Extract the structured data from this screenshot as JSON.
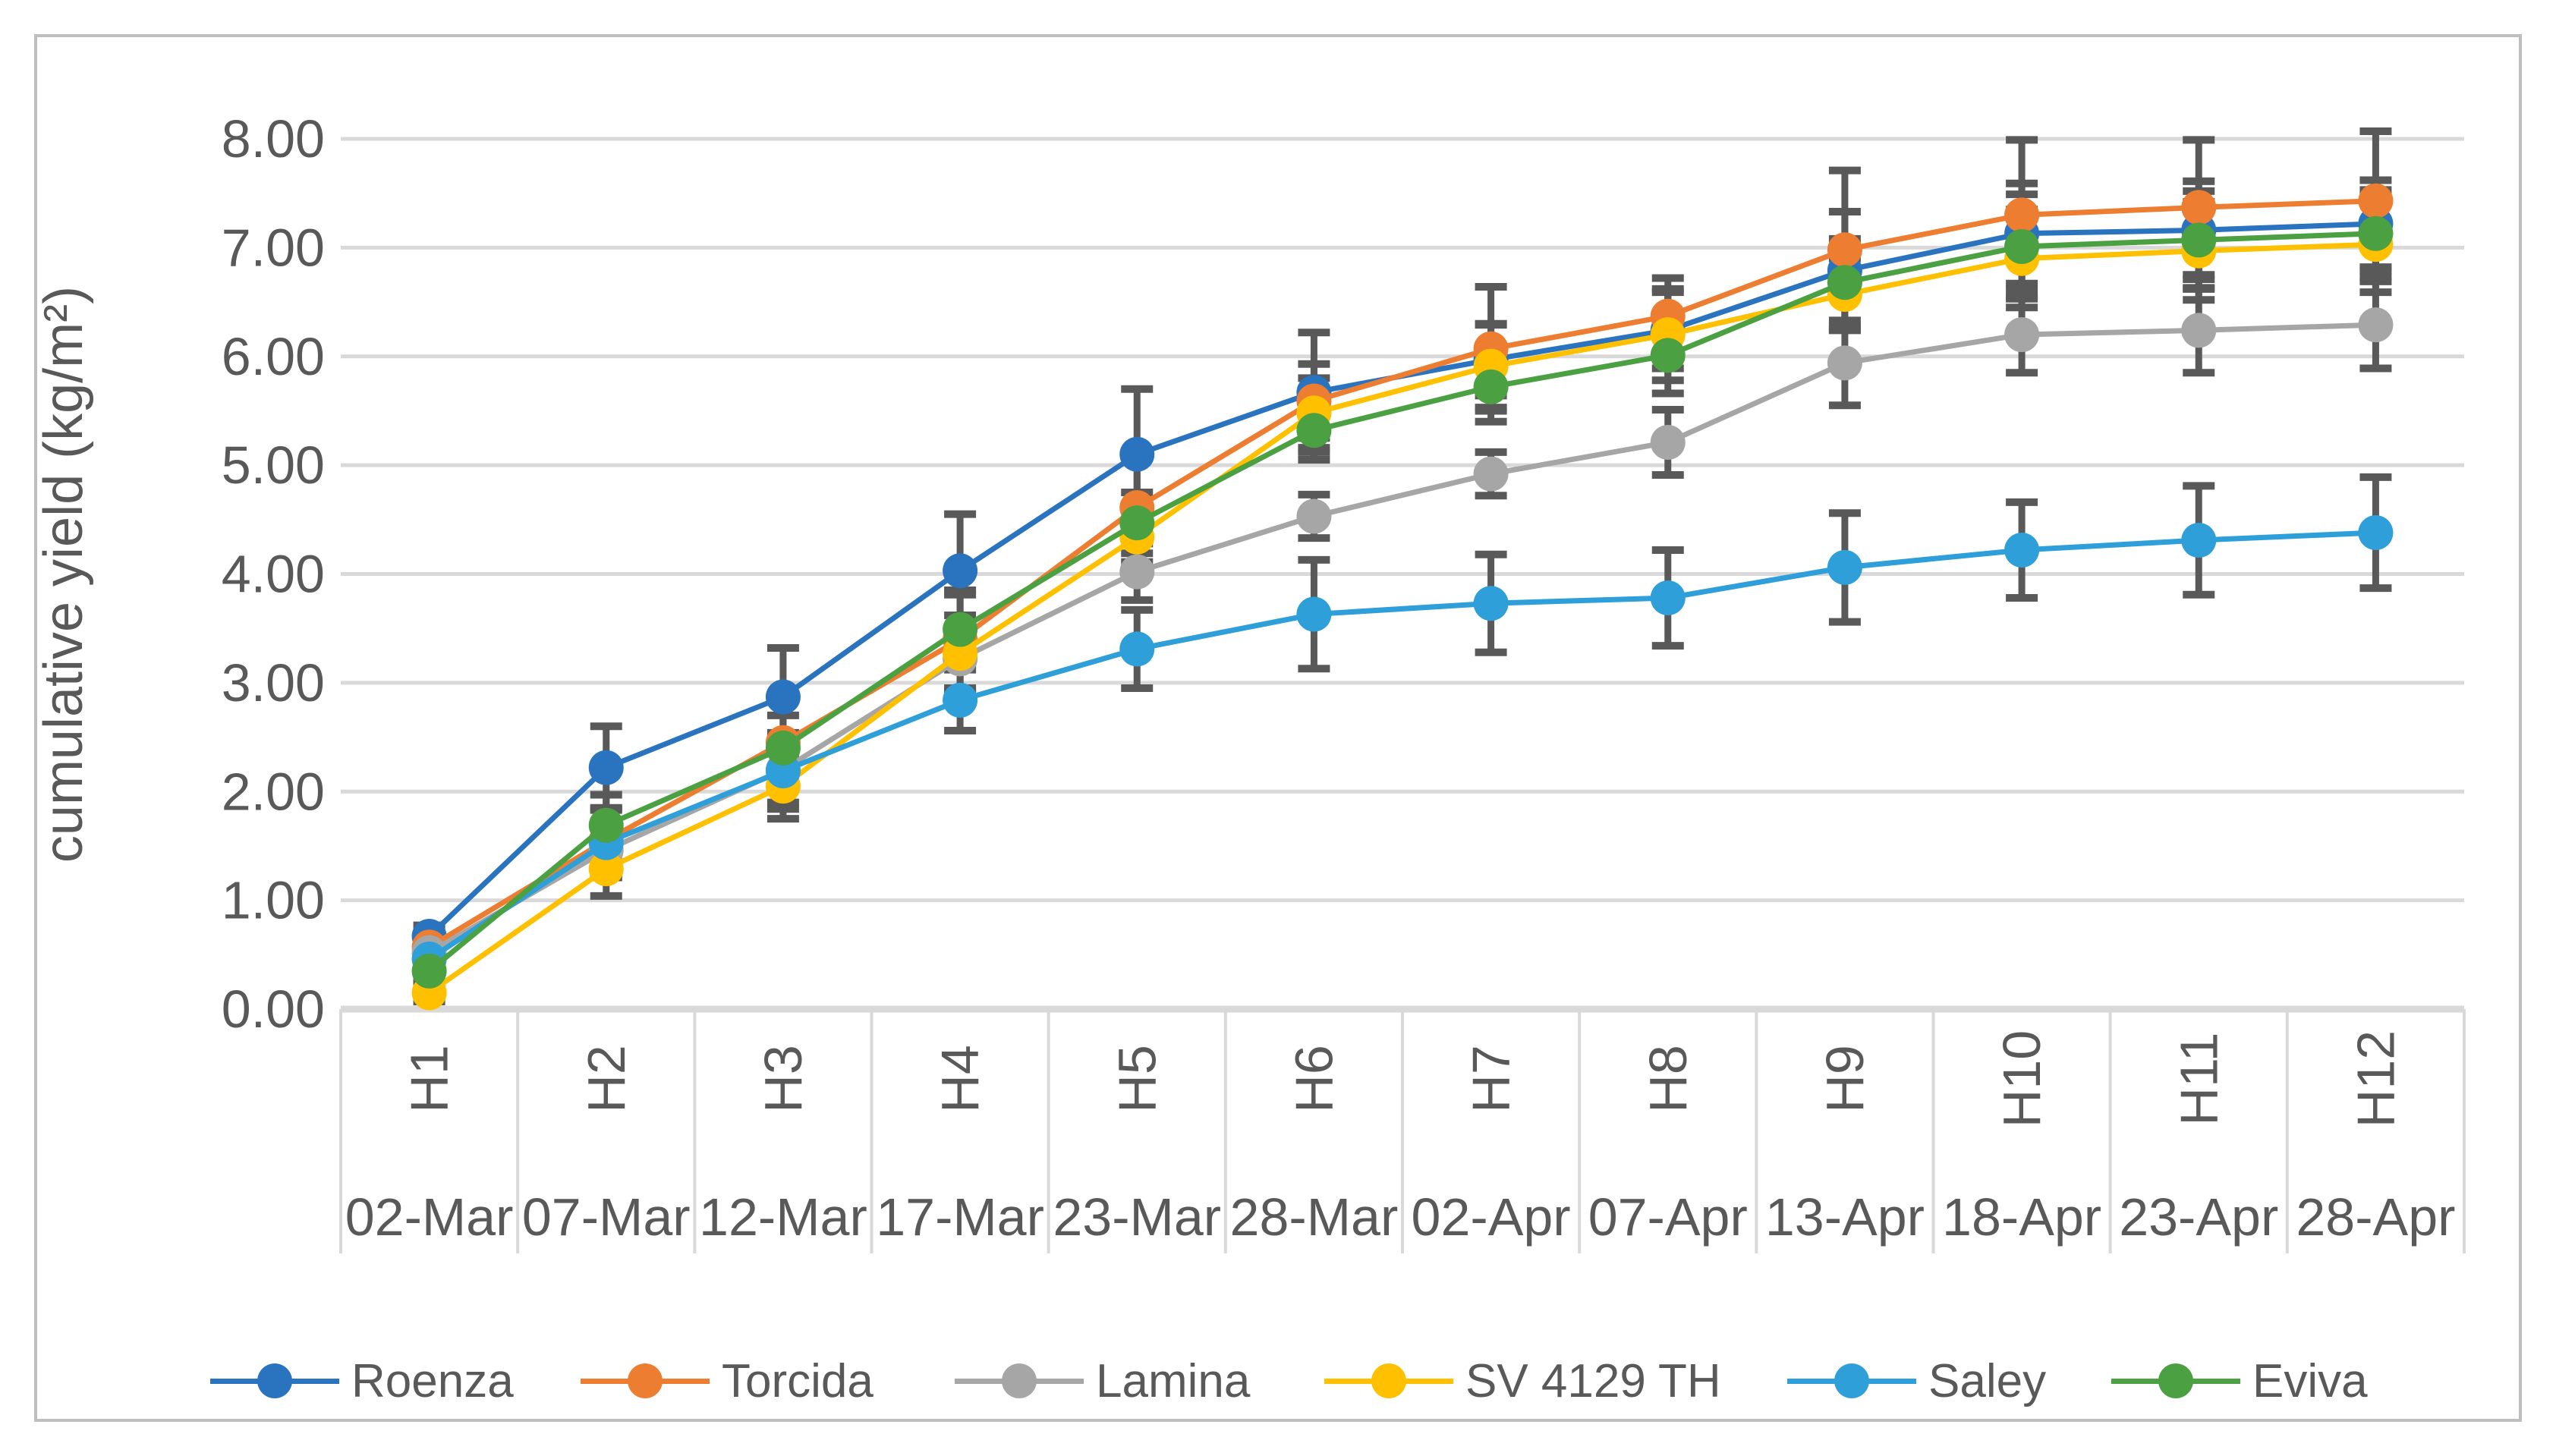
{
  "figure": {
    "background": "#FFFFFF",
    "border_color": "#BFBFBF"
  },
  "chart_data": {
    "type": "line",
    "title": "",
    "ylabel": "cumulative yield (kg/m²)",
    "xlabel": "",
    "grid": "horizontal",
    "error_bars": true,
    "legend_position": "bottom",
    "text_color": "#595959",
    "grid_color": "#D9D9D9",
    "error_bar_color": "#595959",
    "y_axis": {
      "min": 0,
      "max": 8,
      "step": 1,
      "tick_labels": [
        "0.00",
        "1.00",
        "2.00",
        "3.00",
        "4.00",
        "5.00",
        "6.00",
        "7.00",
        "8.00"
      ]
    },
    "x_levels": [
      {
        "harvest": "H1",
        "date": "02-Mar"
      },
      {
        "harvest": "H2",
        "date": "07-Mar"
      },
      {
        "harvest": "H3",
        "date": "12-Mar"
      },
      {
        "harvest": "H4",
        "date": "17-Mar"
      },
      {
        "harvest": "H5",
        "date": "23-Mar"
      },
      {
        "harvest": "H6",
        "date": "28-Mar"
      },
      {
        "harvest": "H7",
        "date": "02-Apr"
      },
      {
        "harvest": "H8",
        "date": "07-Apr"
      },
      {
        "harvest": "H9",
        "date": "13-Apr"
      },
      {
        "harvest": "H10",
        "date": "18-Apr"
      },
      {
        "harvest": "H11",
        "date": "23-Apr"
      },
      {
        "harvest": "H12",
        "date": "28-Apr"
      }
    ],
    "series": [
      {
        "name": "Roenza",
        "color": "#2A73BF",
        "values": [
          0.67,
          2.22,
          2.87,
          4.03,
          5.1,
          5.67,
          5.97,
          6.24,
          6.79,
          7.13,
          7.16,
          7.22
        ],
        "errors": [
          0.1,
          0.38,
          0.45,
          0.52,
          0.6,
          0.55,
          0.33,
          0.35,
          0.54,
          0.46,
          0.45,
          0.4
        ]
      },
      {
        "name": "Torcida",
        "color": "#ED7D31",
        "values": [
          0.57,
          1.55,
          2.45,
          3.4,
          4.61,
          5.59,
          6.07,
          6.37,
          6.98,
          7.3,
          7.37,
          7.43
        ],
        "errors": [
          0.1,
          0.3,
          0.4,
          0.45,
          0.5,
          0.34,
          0.57,
          0.35,
          0.73,
          0.69,
          0.62,
          0.64
        ]
      },
      {
        "name": "Lamina",
        "color": "#A6A6A6",
        "values": [
          0.52,
          1.46,
          2.2,
          3.22,
          4.02,
          4.53,
          4.92,
          5.21,
          5.94,
          6.2,
          6.24,
          6.29
        ],
        "errors": [
          0.08,
          0.25,
          0.3,
          0.3,
          0.26,
          0.2,
          0.2,
          0.3,
          0.39,
          0.35,
          0.39,
          0.4
        ]
      },
      {
        "name": "SV 4129 TH",
        "color": "#FFC000",
        "values": [
          0.15,
          1.29,
          2.05,
          3.27,
          4.34,
          5.48,
          5.91,
          6.2,
          6.57,
          6.9,
          6.97,
          7.03
        ],
        "errors": [
          0.08,
          0.25,
          0.3,
          0.35,
          0.3,
          0.32,
          0.38,
          0.42,
          0.33,
          0.45,
          0.45,
          0.44
        ]
      },
      {
        "name": "Saley",
        "color": "#2E9FD9",
        "values": [
          0.46,
          1.53,
          2.19,
          2.84,
          3.31,
          3.63,
          3.73,
          3.78,
          4.06,
          4.22,
          4.31,
          4.38
        ],
        "errors": [
          0.08,
          0.3,
          0.35,
          0.28,
          0.36,
          0.5,
          0.45,
          0.44,
          0.5,
          0.44,
          0.5,
          0.51
        ]
      },
      {
        "name": "Eviva",
        "color": "#4BA142",
        "values": [
          0.35,
          1.69,
          2.4,
          3.49,
          4.47,
          5.32,
          5.72,
          6.01,
          6.68,
          7.01,
          7.07,
          7.13
        ],
        "errors": [
          0.08,
          0.28,
          0.3,
          0.32,
          0.28,
          0.27,
          0.32,
          0.35,
          0.4,
          0.48,
          0.45,
          0.4
        ]
      }
    ]
  }
}
